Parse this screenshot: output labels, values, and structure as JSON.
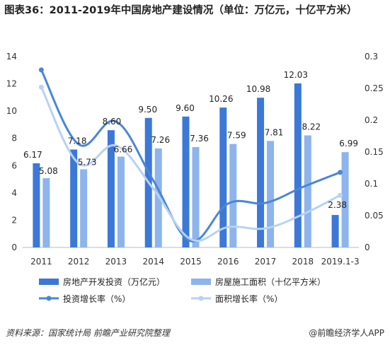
{
  "chart_data": {
    "type": "bar",
    "title": "图表36：2011-2019年中国房地产建设情况（单位：万亿元，十亿平方米）",
    "categories": [
      "2011",
      "2012",
      "2013",
      "2014",
      "2015",
      "2016",
      "2017",
      "2018",
      "2019.1-3"
    ],
    "series": [
      {
        "name": "房地产开发投资（万亿元）",
        "kind": "bar",
        "axis": "left",
        "color": "#3b78d8",
        "values": [
          6.17,
          7.18,
          8.6,
          9.5,
          9.6,
          10.26,
          10.98,
          12.03,
          2.38
        ]
      },
      {
        "name": "房屋施工面积（十亿平方米）",
        "kind": "bar",
        "axis": "left",
        "color": "#8db4ec",
        "values": [
          5.08,
          5.73,
          6.66,
          7.26,
          7.36,
          7.59,
          7.81,
          8.22,
          6.99
        ]
      },
      {
        "name": "投资增长率（%）",
        "kind": "line",
        "axis": "right",
        "color": "#4a86d6",
        "values": [
          0.279,
          0.162,
          0.198,
          0.105,
          0.01,
          0.069,
          0.07,
          0.095,
          0.118
        ]
      },
      {
        "name": "面积增长率（%）",
        "kind": "line",
        "axis": "right",
        "color": "#b7d2f4",
        "values": [
          0.252,
          0.132,
          0.16,
          0.092,
          0.013,
          0.032,
          0.03,
          0.052,
          0.082
        ]
      }
    ],
    "y_left": {
      "min": 0,
      "max": 14,
      "ticks": [
        "0",
        "2",
        "4",
        "6",
        "8",
        "10",
        "12",
        "14"
      ]
    },
    "y_right": {
      "min": 0,
      "max": 0.3,
      "ticks": [
        "0",
        "0.05",
        "0.1",
        "0.15",
        "0.2",
        "0.25",
        "0.3"
      ]
    },
    "bar_labels": [
      [
        "6.17",
        "7.18",
        "8.60",
        "9.50",
        "9.60",
        "10.26",
        "10.98",
        "12.03",
        "2.38"
      ],
      [
        "5.08",
        "5.73",
        "6.66",
        "7.26",
        "7.36",
        "7.59",
        "7.81",
        "8.22",
        "6.99"
      ]
    ],
    "grid": false,
    "legend_position": "bottom"
  },
  "footer": {
    "source": "资料来源：国家统计局 前瞻产业研究院整理",
    "brand": "@前瞻经济学人APP"
  }
}
